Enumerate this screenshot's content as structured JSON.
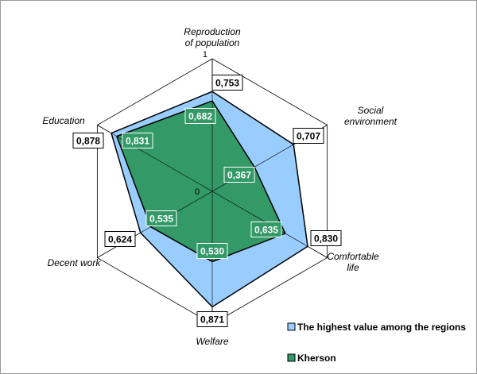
{
  "chart_data": {
    "type": "radar",
    "axes": [
      "Reproduction of population",
      "Social environment",
      "Comfortable life",
      "Welfare",
      "Decent work",
      "Education"
    ],
    "axis_label_lines": [
      [
        "Reproduction",
        "of population"
      ],
      [
        "Social",
        "environment"
      ],
      [
        "Comfortable",
        "life"
      ],
      [
        "Welfare"
      ],
      [
        "Decent work"
      ],
      [
        "Education"
      ]
    ],
    "rlim": [
      0,
      1
    ],
    "ticks": [
      "0",
      "1"
    ],
    "series": [
      {
        "name": "The highest value among the regions",
        "values": [
          0.753,
          0.707,
          0.83,
          0.871,
          0.624,
          0.878
        ],
        "labels": [
          "0,753",
          "0,707",
          "0,830",
          "0,871",
          "0,624",
          "0,878"
        ],
        "color": "#99ccff"
      },
      {
        "name": "Kherson",
        "values": [
          0.682,
          0.367,
          0.635,
          0.53,
          0.535,
          0.831
        ],
        "labels": [
          "0,682",
          "0,367",
          "0,635",
          "0,530",
          "0,535",
          "0,831"
        ],
        "color": "#339966"
      }
    ],
    "legend_position": "bottom-right"
  }
}
